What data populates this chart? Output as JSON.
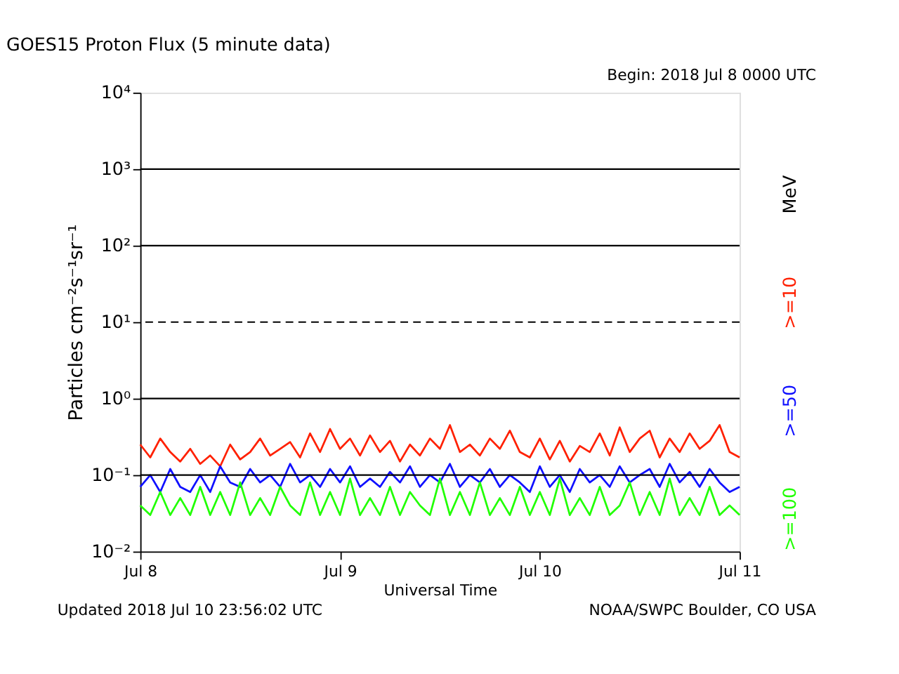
{
  "chart_data": {
    "type": "line",
    "title": "GOES15 Proton Flux (5 minute data)",
    "xlabel": "Universal Time",
    "ylabel": "Particles cm⁻²s⁻¹sr⁻¹",
    "legend_title": "MeV",
    "legend": "right",
    "log": true,
    "grid": false,
    "annotations": [
      "Begin: 2018 Jul 8 0000 UTC",
      "Updated 2018 Jul 10 23:56:02 UTC",
      "NOAA/SWPC Boulder, CO USA"
    ],
    "xlim": [
      "2018-07-08T00:00",
      "2018-07-11T00:00"
    ],
    "xticks": [
      {
        "value": "2018-07-08T00:00",
        "label": "Jul 8"
      },
      {
        "value": "2018-07-09T00:00",
        "label": "Jul 9"
      },
      {
        "value": "2018-07-10T00:00",
        "label": "Jul 10"
      },
      {
        "value": "2018-07-11T00:00",
        "label": "Jul 11"
      }
    ],
    "ylim": [
      0.01,
      10000
    ],
    "yticks": [
      {
        "value": 0.01,
        "label": "10⁻²"
      },
      {
        "value": 0.1,
        "label": "10⁻¹"
      },
      {
        "value": 1,
        "label": "10⁰"
      },
      {
        "value": 10,
        "label": "10¹"
      },
      {
        "value": 100,
        "label": "10²"
      },
      {
        "value": 1000,
        "label": "10³"
      },
      {
        "value": 10000,
        "label": "10⁴"
      }
    ],
    "ref_lines": [
      {
        "axis": "y",
        "value": 0.1,
        "color": "#000000",
        "line_style": "solid"
      },
      {
        "axis": "y",
        "value": 1,
        "color": "#000000",
        "line_style": "solid"
      },
      {
        "axis": "y",
        "value": 10,
        "color": "#000000",
        "line_style": "dashed"
      },
      {
        "axis": "y",
        "value": 100,
        "color": "#000000",
        "line_style": "solid"
      },
      {
        "axis": "y",
        "value": 1000,
        "color": "#000000",
        "line_style": "solid"
      }
    ],
    "x": [
      "2018-07-08T00:00",
      "2018-07-08T01:12",
      "2018-07-08T02:24",
      "2018-07-08T03:36",
      "2018-07-08T04:48",
      "2018-07-08T06:00",
      "2018-07-08T07:12",
      "2018-07-08T08:24",
      "2018-07-08T09:36",
      "2018-07-08T10:48",
      "2018-07-08T12:00",
      "2018-07-08T13:12",
      "2018-07-08T14:24",
      "2018-07-08T15:36",
      "2018-07-08T16:48",
      "2018-07-08T18:00",
      "2018-07-08T19:12",
      "2018-07-08T20:24",
      "2018-07-08T21:36",
      "2018-07-08T22:48",
      "2018-07-09T00:00",
      "2018-07-09T01:12",
      "2018-07-09T02:24",
      "2018-07-09T03:36",
      "2018-07-09T04:48",
      "2018-07-09T06:00",
      "2018-07-09T07:12",
      "2018-07-09T08:24",
      "2018-07-09T09:36",
      "2018-07-09T10:48",
      "2018-07-09T12:00",
      "2018-07-09T13:12",
      "2018-07-09T14:24",
      "2018-07-09T15:36",
      "2018-07-09T16:48",
      "2018-07-09T18:00",
      "2018-07-09T19:12",
      "2018-07-09T20:24",
      "2018-07-09T21:36",
      "2018-07-09T22:48",
      "2018-07-10T00:00",
      "2018-07-10T01:12",
      "2018-07-10T02:24",
      "2018-07-10T03:36",
      "2018-07-10T04:48",
      "2018-07-10T06:00",
      "2018-07-10T07:12",
      "2018-07-10T08:24",
      "2018-07-10T09:36",
      "2018-07-10T10:48",
      "2018-07-10T12:00",
      "2018-07-10T13:12",
      "2018-07-10T14:24",
      "2018-07-10T15:36",
      "2018-07-10T16:48",
      "2018-07-10T18:00",
      "2018-07-10T19:12",
      "2018-07-10T20:24",
      "2018-07-10T21:36",
      "2018-07-10T22:48",
      "2018-07-11T00:00"
    ],
    "series": [
      {
        "name": ">=10",
        "color": "#ff2000",
        "values": [
          0.25,
          0.17,
          0.3,
          0.2,
          0.15,
          0.22,
          0.14,
          0.18,
          0.13,
          0.25,
          0.16,
          0.2,
          0.3,
          0.18,
          0.22,
          0.27,
          0.17,
          0.35,
          0.2,
          0.4,
          0.22,
          0.3,
          0.18,
          0.33,
          0.2,
          0.28,
          0.15,
          0.25,
          0.18,
          0.3,
          0.22,
          0.45,
          0.2,
          0.25,
          0.18,
          0.3,
          0.22,
          0.38,
          0.2,
          0.17,
          0.3,
          0.16,
          0.28,
          0.15,
          0.24,
          0.2,
          0.35,
          0.18,
          0.42,
          0.2,
          0.3,
          0.38,
          0.17,
          0.3,
          0.2,
          0.35,
          0.22,
          0.28,
          0.45,
          0.2,
          0.17
        ]
      },
      {
        "name": ">=50",
        "color": "#1010ff",
        "values": [
          0.07,
          0.1,
          0.06,
          0.12,
          0.07,
          0.06,
          0.1,
          0.06,
          0.13,
          0.08,
          0.07,
          0.12,
          0.08,
          0.1,
          0.07,
          0.14,
          0.08,
          0.1,
          0.07,
          0.12,
          0.08,
          0.13,
          0.07,
          0.09,
          0.07,
          0.11,
          0.08,
          0.13,
          0.07,
          0.1,
          0.08,
          0.14,
          0.07,
          0.1,
          0.08,
          0.12,
          0.07,
          0.1,
          0.08,
          0.06,
          0.13,
          0.07,
          0.1,
          0.06,
          0.12,
          0.08,
          0.1,
          0.07,
          0.13,
          0.08,
          0.1,
          0.12,
          0.07,
          0.14,
          0.08,
          0.11,
          0.07,
          0.12,
          0.08,
          0.06,
          0.07
        ]
      },
      {
        "name": ">=100",
        "color": "#20ff00",
        "values": [
          0.04,
          0.03,
          0.06,
          0.03,
          0.05,
          0.03,
          0.07,
          0.03,
          0.06,
          0.03,
          0.08,
          0.03,
          0.05,
          0.03,
          0.07,
          0.04,
          0.03,
          0.08,
          0.03,
          0.06,
          0.03,
          0.09,
          0.03,
          0.05,
          0.03,
          0.07,
          0.03,
          0.06,
          0.04,
          0.03,
          0.09,
          0.03,
          0.06,
          0.03,
          0.08,
          0.03,
          0.05,
          0.03,
          0.07,
          0.03,
          0.06,
          0.03,
          0.09,
          0.03,
          0.05,
          0.03,
          0.07,
          0.03,
          0.04,
          0.08,
          0.03,
          0.06,
          0.03,
          0.09,
          0.03,
          0.05,
          0.03,
          0.07,
          0.03,
          0.04,
          0.03
        ]
      }
    ]
  }
}
